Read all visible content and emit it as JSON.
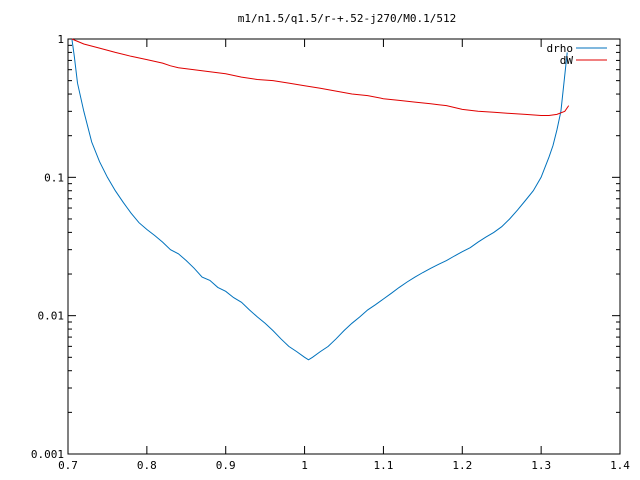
{
  "chart_data": {
    "type": "line",
    "title": "m1/n1.5/q1.5/r-+.52-j270/M0.1/512",
    "xlabel": "",
    "ylabel": "",
    "xlim": [
      0.7,
      1.4
    ],
    "ylim": [
      0.001,
      1
    ],
    "yscale": "log",
    "grid": false,
    "legend_position": "top-right",
    "x_ticks": [
      "0.7",
      "0.8",
      "0.9",
      "1",
      "1.1",
      "1.2",
      "1.3",
      "1.4"
    ],
    "y_ticks": [
      "1",
      "0.1",
      "0.01",
      "0.001"
    ],
    "series": [
      {
        "name": "drho",
        "color": "#0072bd",
        "x": [
          0.705,
          0.708,
          0.712,
          0.72,
          0.73,
          0.74,
          0.75,
          0.76,
          0.77,
          0.78,
          0.79,
          0.8,
          0.81,
          0.82,
          0.83,
          0.84,
          0.85,
          0.86,
          0.87,
          0.88,
          0.89,
          0.9,
          0.91,
          0.92,
          0.93,
          0.94,
          0.95,
          0.96,
          0.97,
          0.98,
          0.99,
          1.0,
          1.005,
          1.01,
          1.02,
          1.03,
          1.04,
          1.05,
          1.06,
          1.07,
          1.08,
          1.09,
          1.1,
          1.11,
          1.12,
          1.13,
          1.14,
          1.15,
          1.16,
          1.17,
          1.18,
          1.19,
          1.2,
          1.21,
          1.22,
          1.23,
          1.24,
          1.25,
          1.26,
          1.27,
          1.28,
          1.29,
          1.3,
          1.31,
          1.315,
          1.32,
          1.325,
          1.33,
          1.333
        ],
        "values": [
          1.0,
          0.75,
          0.48,
          0.3,
          0.18,
          0.13,
          0.1,
          0.08,
          0.066,
          0.055,
          0.047,
          0.042,
          0.038,
          0.034,
          0.03,
          0.028,
          0.025,
          0.022,
          0.019,
          0.018,
          0.016,
          0.015,
          0.0135,
          0.0125,
          0.011,
          0.0098,
          0.0088,
          0.0078,
          0.0068,
          0.006,
          0.0055,
          0.005,
          0.0048,
          0.005,
          0.0055,
          0.006,
          0.0068,
          0.0078,
          0.0088,
          0.0098,
          0.011,
          0.012,
          0.0132,
          0.0145,
          0.016,
          0.0175,
          0.019,
          0.0205,
          0.022,
          0.0235,
          0.025,
          0.027,
          0.029,
          0.031,
          0.034,
          0.037,
          0.04,
          0.044,
          0.05,
          0.058,
          0.068,
          0.08,
          0.1,
          0.14,
          0.17,
          0.22,
          0.3,
          0.55,
          0.8
        ]
      },
      {
        "name": "dW",
        "color": "#e00000",
        "x": [
          0.705,
          0.72,
          0.74,
          0.76,
          0.78,
          0.8,
          0.82,
          0.83,
          0.84,
          0.86,
          0.88,
          0.9,
          0.92,
          0.94,
          0.96,
          0.98,
          1.0,
          1.02,
          1.04,
          1.06,
          1.08,
          1.1,
          1.12,
          1.14,
          1.16,
          1.17,
          1.18,
          1.19,
          1.2,
          1.22,
          1.24,
          1.26,
          1.28,
          1.3,
          1.31,
          1.32,
          1.33,
          1.335
        ],
        "values": [
          1.0,
          0.92,
          0.86,
          0.8,
          0.75,
          0.71,
          0.67,
          0.64,
          0.62,
          0.6,
          0.58,
          0.56,
          0.53,
          0.51,
          0.5,
          0.48,
          0.46,
          0.44,
          0.42,
          0.4,
          0.39,
          0.37,
          0.36,
          0.35,
          0.34,
          0.335,
          0.33,
          0.32,
          0.31,
          0.3,
          0.295,
          0.29,
          0.285,
          0.28,
          0.28,
          0.285,
          0.3,
          0.33
        ]
      }
    ]
  }
}
